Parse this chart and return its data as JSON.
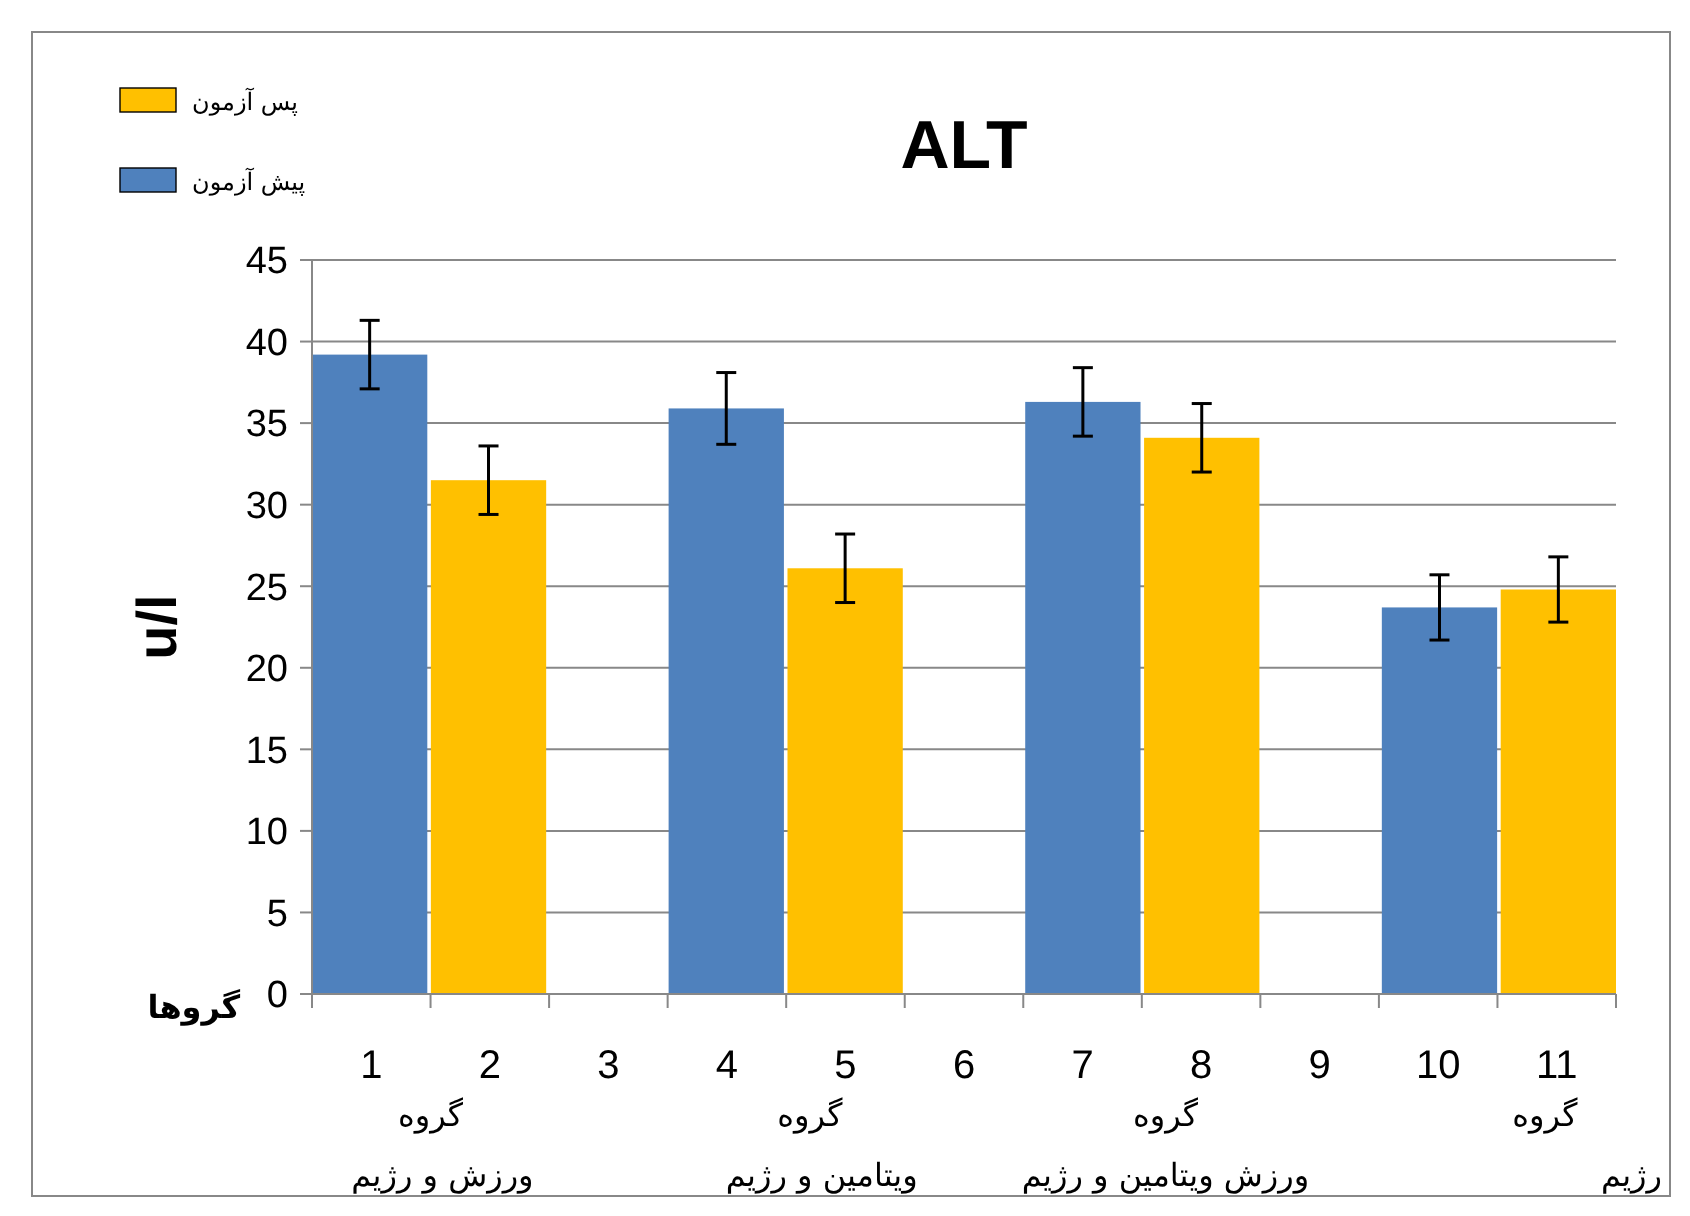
{
  "chart_data": {
    "type": "bar",
    "title": "ALT",
    "ylabel": "u/l",
    "xlabel": "گروها",
    "categories": [
      "1",
      "2",
      "3",
      "4",
      "5",
      "6",
      "7",
      "8",
      "9",
      "10",
      "11"
    ],
    "series": [
      {
        "name": "پیش آزمون",
        "color": "#4f81bd",
        "values": [
          39.2,
          null,
          null,
          35.9,
          null,
          null,
          36.3,
          null,
          null,
          23.7,
          null
        ],
        "errors": [
          2.1,
          null,
          null,
          2.2,
          null,
          null,
          2.1,
          null,
          null,
          2.0,
          null
        ]
      },
      {
        "name": "پس آزمون",
        "color": "#ffc000",
        "values": [
          null,
          31.5,
          null,
          null,
          26.1,
          null,
          null,
          34.1,
          null,
          null,
          24.8
        ],
        "errors": [
          null,
          2.1,
          null,
          null,
          2.1,
          null,
          null,
          2.1,
          null,
          null,
          2.0
        ]
      }
    ],
    "ylim": [
      0,
      45
    ],
    "yticks": [
      0,
      5,
      10,
      15,
      20,
      25,
      30,
      35,
      40,
      45
    ],
    "grid": "y",
    "legend": "top left",
    "annotations": [
      "گروه",
      "ورزش و رژیم",
      "گروه",
      "ویتامین و رژیم",
      "گروه",
      "ورزش ویتامین و رژیم",
      "گروه",
      "رژیم"
    ]
  }
}
